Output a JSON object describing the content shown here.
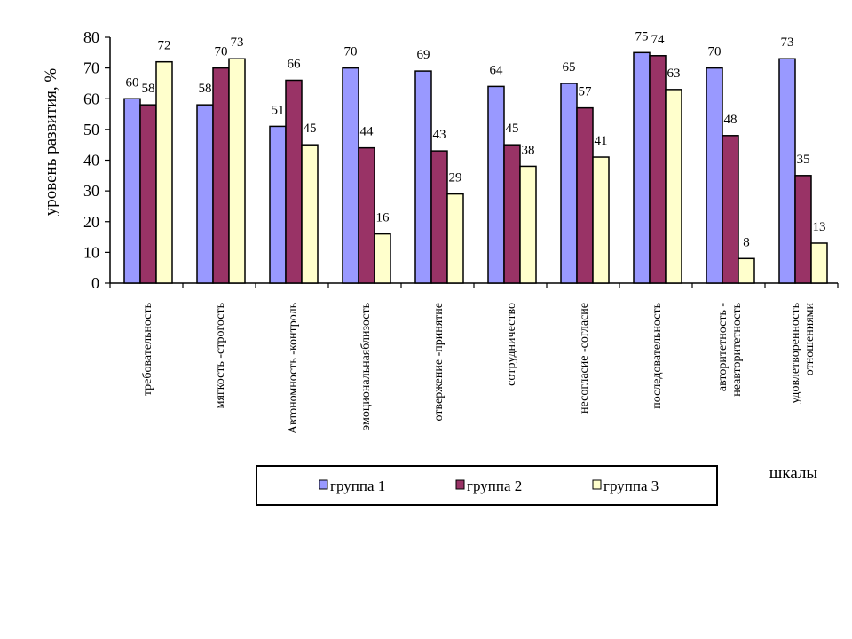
{
  "chart_data": {
    "type": "bar",
    "title": "",
    "ylabel": "уровень развития, %",
    "xlabel": "шкалы",
    "ylim": [
      0,
      80
    ],
    "ytick_step": 10,
    "grid": false,
    "legend_position": "bottom",
    "categories": [
      [
        "требовательность"
      ],
      [
        "мягкость  -строгость"
      ],
      [
        "Автономность  -контроль"
      ],
      [
        "эмоциональнаяблизость"
      ],
      [
        "отвержение  -принятие"
      ],
      [
        "сотрудничество"
      ],
      [
        "несогласие  -согласие"
      ],
      [
        "последовательность"
      ],
      [
        "авторитетность  -",
        "неавторитетность"
      ],
      [
        "удовлетворенность",
        "отношениями"
      ]
    ],
    "series": [
      {
        "name": "группа 1",
        "color": "#9999ff",
        "values": [
          60,
          58,
          51,
          70,
          69,
          64,
          65,
          75,
          70,
          73
        ]
      },
      {
        "name": "группа 2",
        "color": "#993366",
        "values": [
          58,
          70,
          66,
          44,
          43,
          45,
          57,
          74,
          48,
          35
        ]
      },
      {
        "name": "группа 3",
        "color": "#ffffcc",
        "values": [
          72,
          73,
          45,
          16,
          29,
          38,
          41,
          63,
          8,
          13
        ]
      }
    ]
  }
}
